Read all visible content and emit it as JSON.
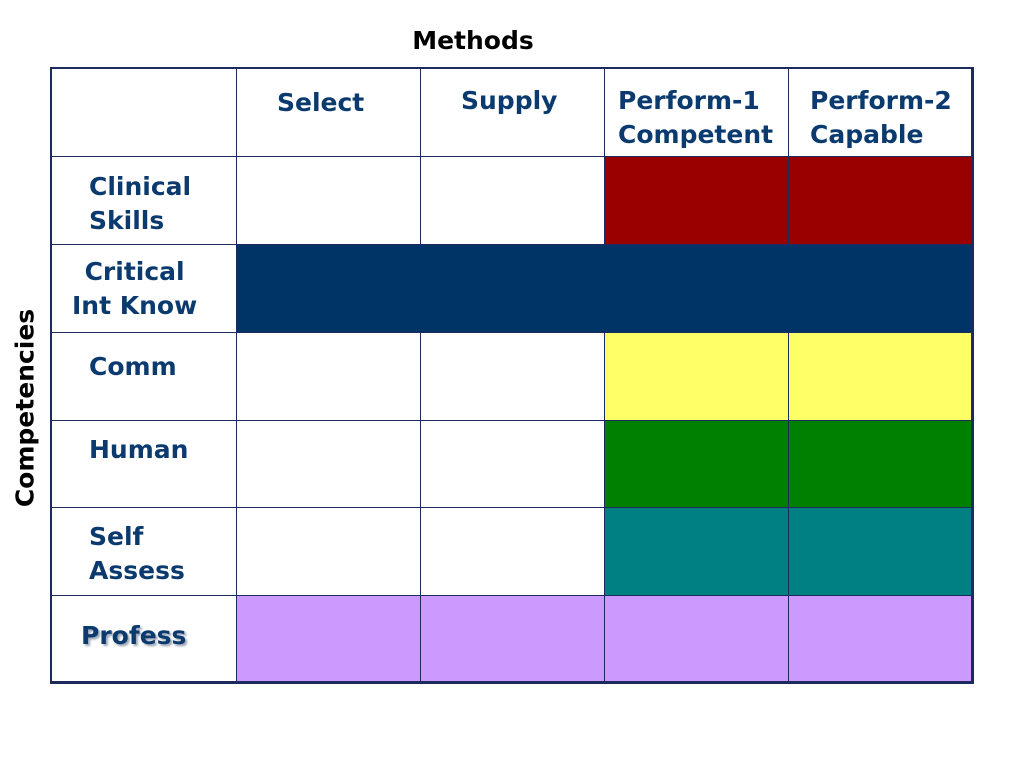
{
  "title": "Methods",
  "axis_label": "Competencies",
  "columns": [
    "Select",
    "Supply",
    "Perform-1\nCompetent",
    "Perform-2\nCapable"
  ],
  "rows": [
    {
      "label": "Clinical\nSkills",
      "fills": [
        "#ffffff",
        "#ffffff",
        "#990000",
        "#990000"
      ]
    },
    {
      "label": "Critical\nInt Know",
      "fills": [
        "#003366",
        "#003366",
        "#003366",
        "#003366"
      ],
      "merged": true
    },
    {
      "label": "Comm",
      "fills": [
        "#ffffff",
        "#ffffff",
        "#ffff66",
        "#ffff66"
      ]
    },
    {
      "label": "Human",
      "fills": [
        "#ffffff",
        "#ffffff",
        "#008000",
        "#008000"
      ]
    },
    {
      "label": "Self\nAssess",
      "fills": [
        "#ffffff",
        "#ffffff",
        "#008080",
        "#008080"
      ]
    },
    {
      "label": "Profess",
      "fills": [
        "#cc99ff",
        "#cc99ff",
        "#cc99ff",
        "#cc99ff"
      ],
      "shadow": true
    }
  ]
}
